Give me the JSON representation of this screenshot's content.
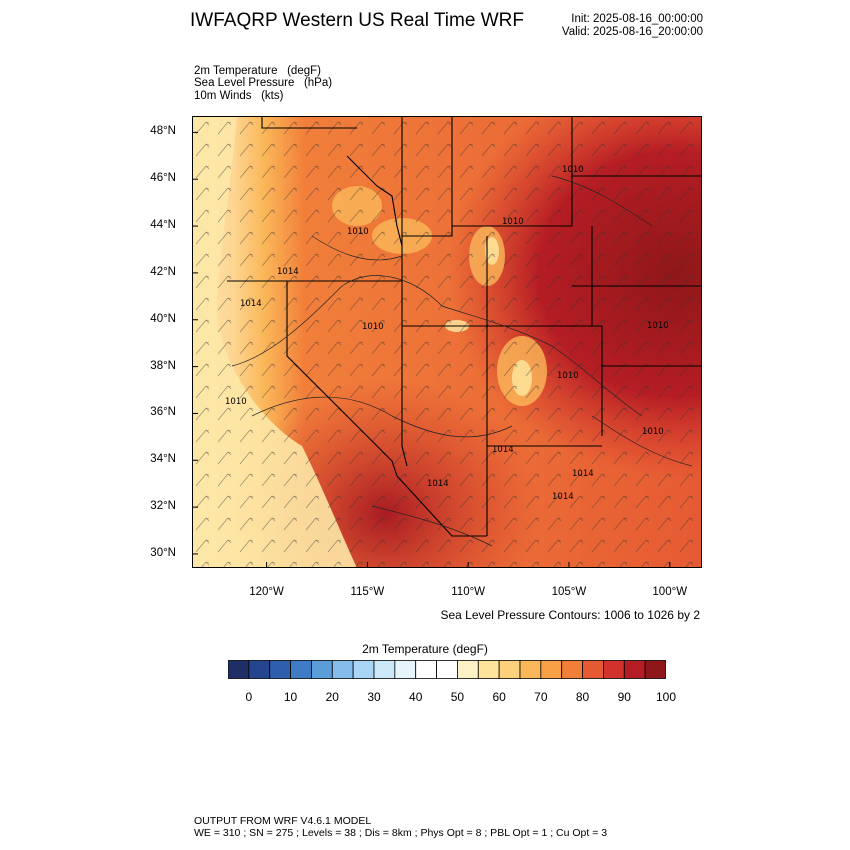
{
  "header": {
    "title": "IWFAQRP Western US Real Time WRF",
    "init": "Init: 2025-08-16_00:00:00",
    "valid": "Valid: 2025-08-16_20:00:00"
  },
  "fields": [
    "2m Temperature   (degF)",
    "Sea Level Pressure   (hPa)",
    "10m Winds   (kts)"
  ],
  "map": {
    "lat_labels": [
      "48°N",
      "46°N",
      "44°N",
      "42°N",
      "40°N",
      "38°N",
      "36°N",
      "34°N",
      "32°N",
      "30°N"
    ],
    "lon_labels": [
      "120°W",
      "115°W",
      "110°W",
      "105°W",
      "100°W"
    ],
    "lat_range": [
      29.4,
      48.7
    ],
    "lon_range": [
      -123.7,
      -98.4
    ],
    "isobar_labels": [
      "1010",
      "1010",
      "1010",
      "1010",
      "1010",
      "1014",
      "1014",
      "1014",
      "1010",
      "1010",
      "1010",
      "1014",
      "1014",
      "1014"
    ]
  },
  "contour_note": "Sea Level Pressure Contours: 1006 to 1026 by 2",
  "colorbar": {
    "title": "2m Temperature  (degF)",
    "labels": [
      "0",
      "10",
      "20",
      "30",
      "40",
      "50",
      "60",
      "70",
      "80",
      "90",
      "100"
    ],
    "colors": [
      "#1f2f66",
      "#25468f",
      "#2e5fad",
      "#3f7cc5",
      "#5b9dd9",
      "#84bde9",
      "#a9d6f4",
      "#cce8f8",
      "#e6f4fb",
      "#ffffff",
      "#ffffff",
      "#fdf1c6",
      "#fde49a",
      "#fdd07c",
      "#fbb85a",
      "#f7a046",
      "#f17f3a",
      "#e65a33",
      "#d2322b",
      "#b51d24",
      "#8f1719"
    ]
  },
  "footer": {
    "line1": "OUTPUT FROM WRF V4.6.1 MODEL",
    "line2": "WE = 310 ; SN = 275 ; Levels = 38 ; Dis = 8km ; Phys Opt = 8 ; PBL Opt = 1 ; Cu Opt = 3"
  }
}
